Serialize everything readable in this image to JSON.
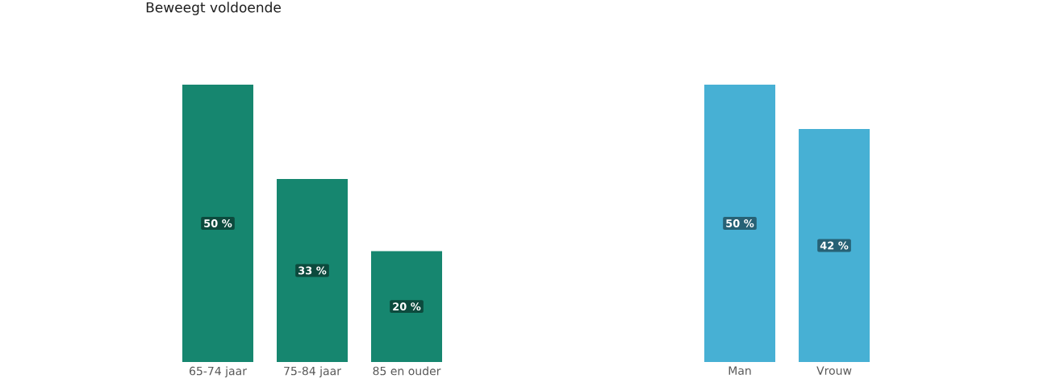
{
  "chart_data": [
    {
      "type": "bar",
      "title": "Beweegt voldoende",
      "categories": [
        "65-74 jaar",
        "75-84 jaar",
        "85 en ouder"
      ],
      "values": [
        50,
        33,
        20
      ],
      "color": "#16866f",
      "value_labels": [
        "50 %",
        "33 %",
        "20 %"
      ]
    },
    {
      "type": "bar",
      "categories": [
        "Man",
        "Vrouw"
      ],
      "values": [
        50,
        42
      ],
      "color": "#47b0d4",
      "value_labels": [
        "50 %",
        "42 %"
      ]
    }
  ]
}
